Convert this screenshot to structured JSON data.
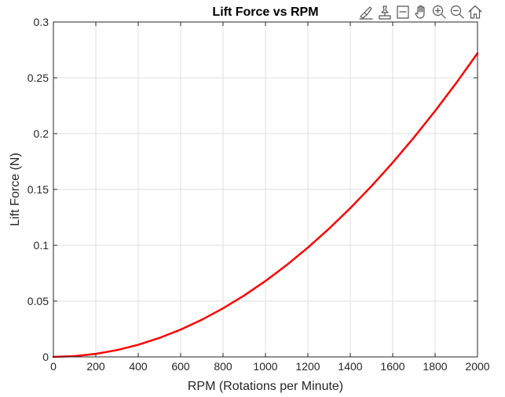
{
  "toolbar": {
    "icons": [
      "brush-data-icon",
      "data-tips-icon",
      "restore-view-icon",
      "pan-icon",
      "zoom-in-icon",
      "zoom-out-icon",
      "home-icon"
    ]
  },
  "colors": {
    "line": "#ff0000",
    "grid": "#dfdfdf",
    "axis": "#262626",
    "background": "#ffffff"
  },
  "chart_data": {
    "type": "line",
    "title": "Lift Force vs RPM",
    "xlabel": "RPM (Rotations per Minute)",
    "ylabel": "Lift Force (N)",
    "xlim": [
      0,
      2000
    ],
    "ylim": [
      0,
      0.3
    ],
    "xticks": [
      "0",
      "200",
      "400",
      "600",
      "800",
      "1000",
      "1200",
      "1400",
      "1600",
      "1800",
      "2000"
    ],
    "yticks": [
      "0",
      "0.05",
      "0.1",
      "0.15",
      "0.2",
      "0.25",
      "0.3"
    ],
    "grid": true,
    "legend": "none",
    "series": [
      {
        "color": "#ff0000",
        "x": [
          0,
          100,
          200,
          300,
          400,
          500,
          600,
          700,
          800,
          900,
          1000,
          1100,
          1200,
          1300,
          1400,
          1500,
          1600,
          1700,
          1800,
          1900,
          2000
        ],
        "y": [
          0,
          0.00068,
          0.00272,
          0.00612,
          0.01088,
          0.017,
          0.02448,
          0.03332,
          0.04352,
          0.05508,
          0.068,
          0.08228,
          0.09792,
          0.11492,
          0.13328,
          0.153,
          0.17408,
          0.19652,
          0.22032,
          0.24548,
          0.272
        ]
      }
    ]
  }
}
